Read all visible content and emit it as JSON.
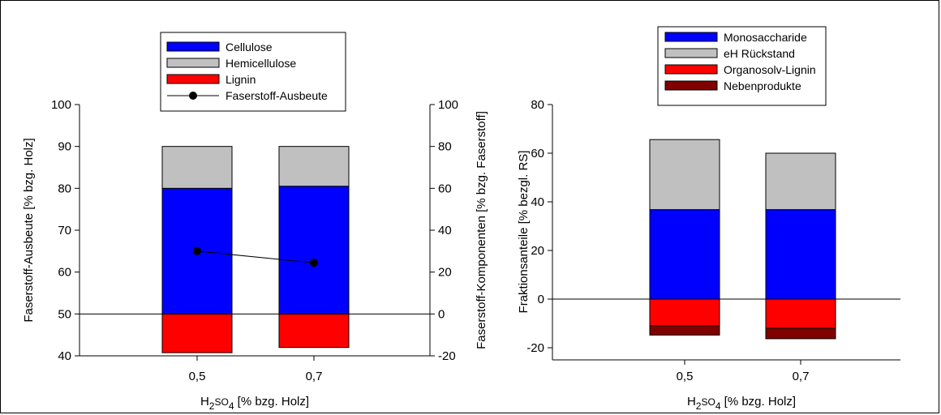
{
  "chart_data": [
    {
      "type": "bar",
      "categories": [
        "0,5",
        "0,7"
      ],
      "xlabel": {
        "pre": "H",
        "sub1": "2",
        "mid": "SO",
        "sub2": "4",
        "post": " [% bzg. Holz]"
      },
      "ylabel": "Faserstoff-Ausbeute [% bzg. Holz]",
      "ylim": [
        40,
        100
      ],
      "yticks": [
        "40",
        "50",
        "60",
        "70",
        "80",
        "90",
        "100"
      ],
      "y2label": "Faserstoff-Komponenten [% bzg. Faserstoff]",
      "y2lim": [
        -20,
        100
      ],
      "y2ticks": [
        "-20",
        "0",
        "20",
        "40",
        "60",
        "80",
        "100"
      ],
      "stacked": true,
      "baseline_y2": 0,
      "series": [
        {
          "name": "Cellulose",
          "axis": "y2",
          "color": "#0000ff",
          "values": [
            60,
            61
          ]
        },
        {
          "name": "Hemicellulose",
          "axis": "y2",
          "color": "#c0c0c0",
          "values": [
            20,
            19
          ]
        },
        {
          "name": "Lignin",
          "axis": "y2",
          "color": "#ff0000",
          "values": [
            -18.5,
            -16
          ]
        }
      ],
      "line_series": {
        "name": "Faserstoff-Ausbeute",
        "axis": "y",
        "color": "#000000",
        "values": [
          65,
          62.2
        ]
      },
      "legend_items": [
        "Cellulose",
        "Hemicellulose",
        "Lignin",
        "Faserstoff-Ausbeute"
      ],
      "legend": "top-center"
    },
    {
      "type": "bar",
      "categories": [
        "0,5",
        "0,7"
      ],
      "xlabel": {
        "pre": "H",
        "sub1": "2",
        "mid": "SO",
        "sub2": "4",
        "post": " [% bzg. Holz]"
      },
      "ylabel": "Fraktionsanteile [% bezgl. RS]",
      "ylim": [
        -25,
        80
      ],
      "yticks": [
        "-20",
        "0",
        "20",
        "40",
        "60",
        "80"
      ],
      "stacked": true,
      "series": [
        {
          "name": "Monosaccharide",
          "color": "#0000ff",
          "values": [
            36.8,
            36.8
          ]
        },
        {
          "name": "eH Rückstand",
          "color": "#c0c0c0",
          "values": [
            28.8,
            23.2
          ]
        },
        {
          "name": "Organosolv-Lignin",
          "color": "#ff0000",
          "values": [
            -11,
            -12
          ]
        },
        {
          "name": "Nebenprodukte",
          "color": "#800000",
          "values": [
            -3.8,
            -4.3
          ]
        }
      ],
      "legend_items": [
        "Monosaccharide",
        "eH Rückstand",
        "Organosolv-Lignin",
        "Nebenprodukte"
      ],
      "legend": "top-center"
    }
  ]
}
